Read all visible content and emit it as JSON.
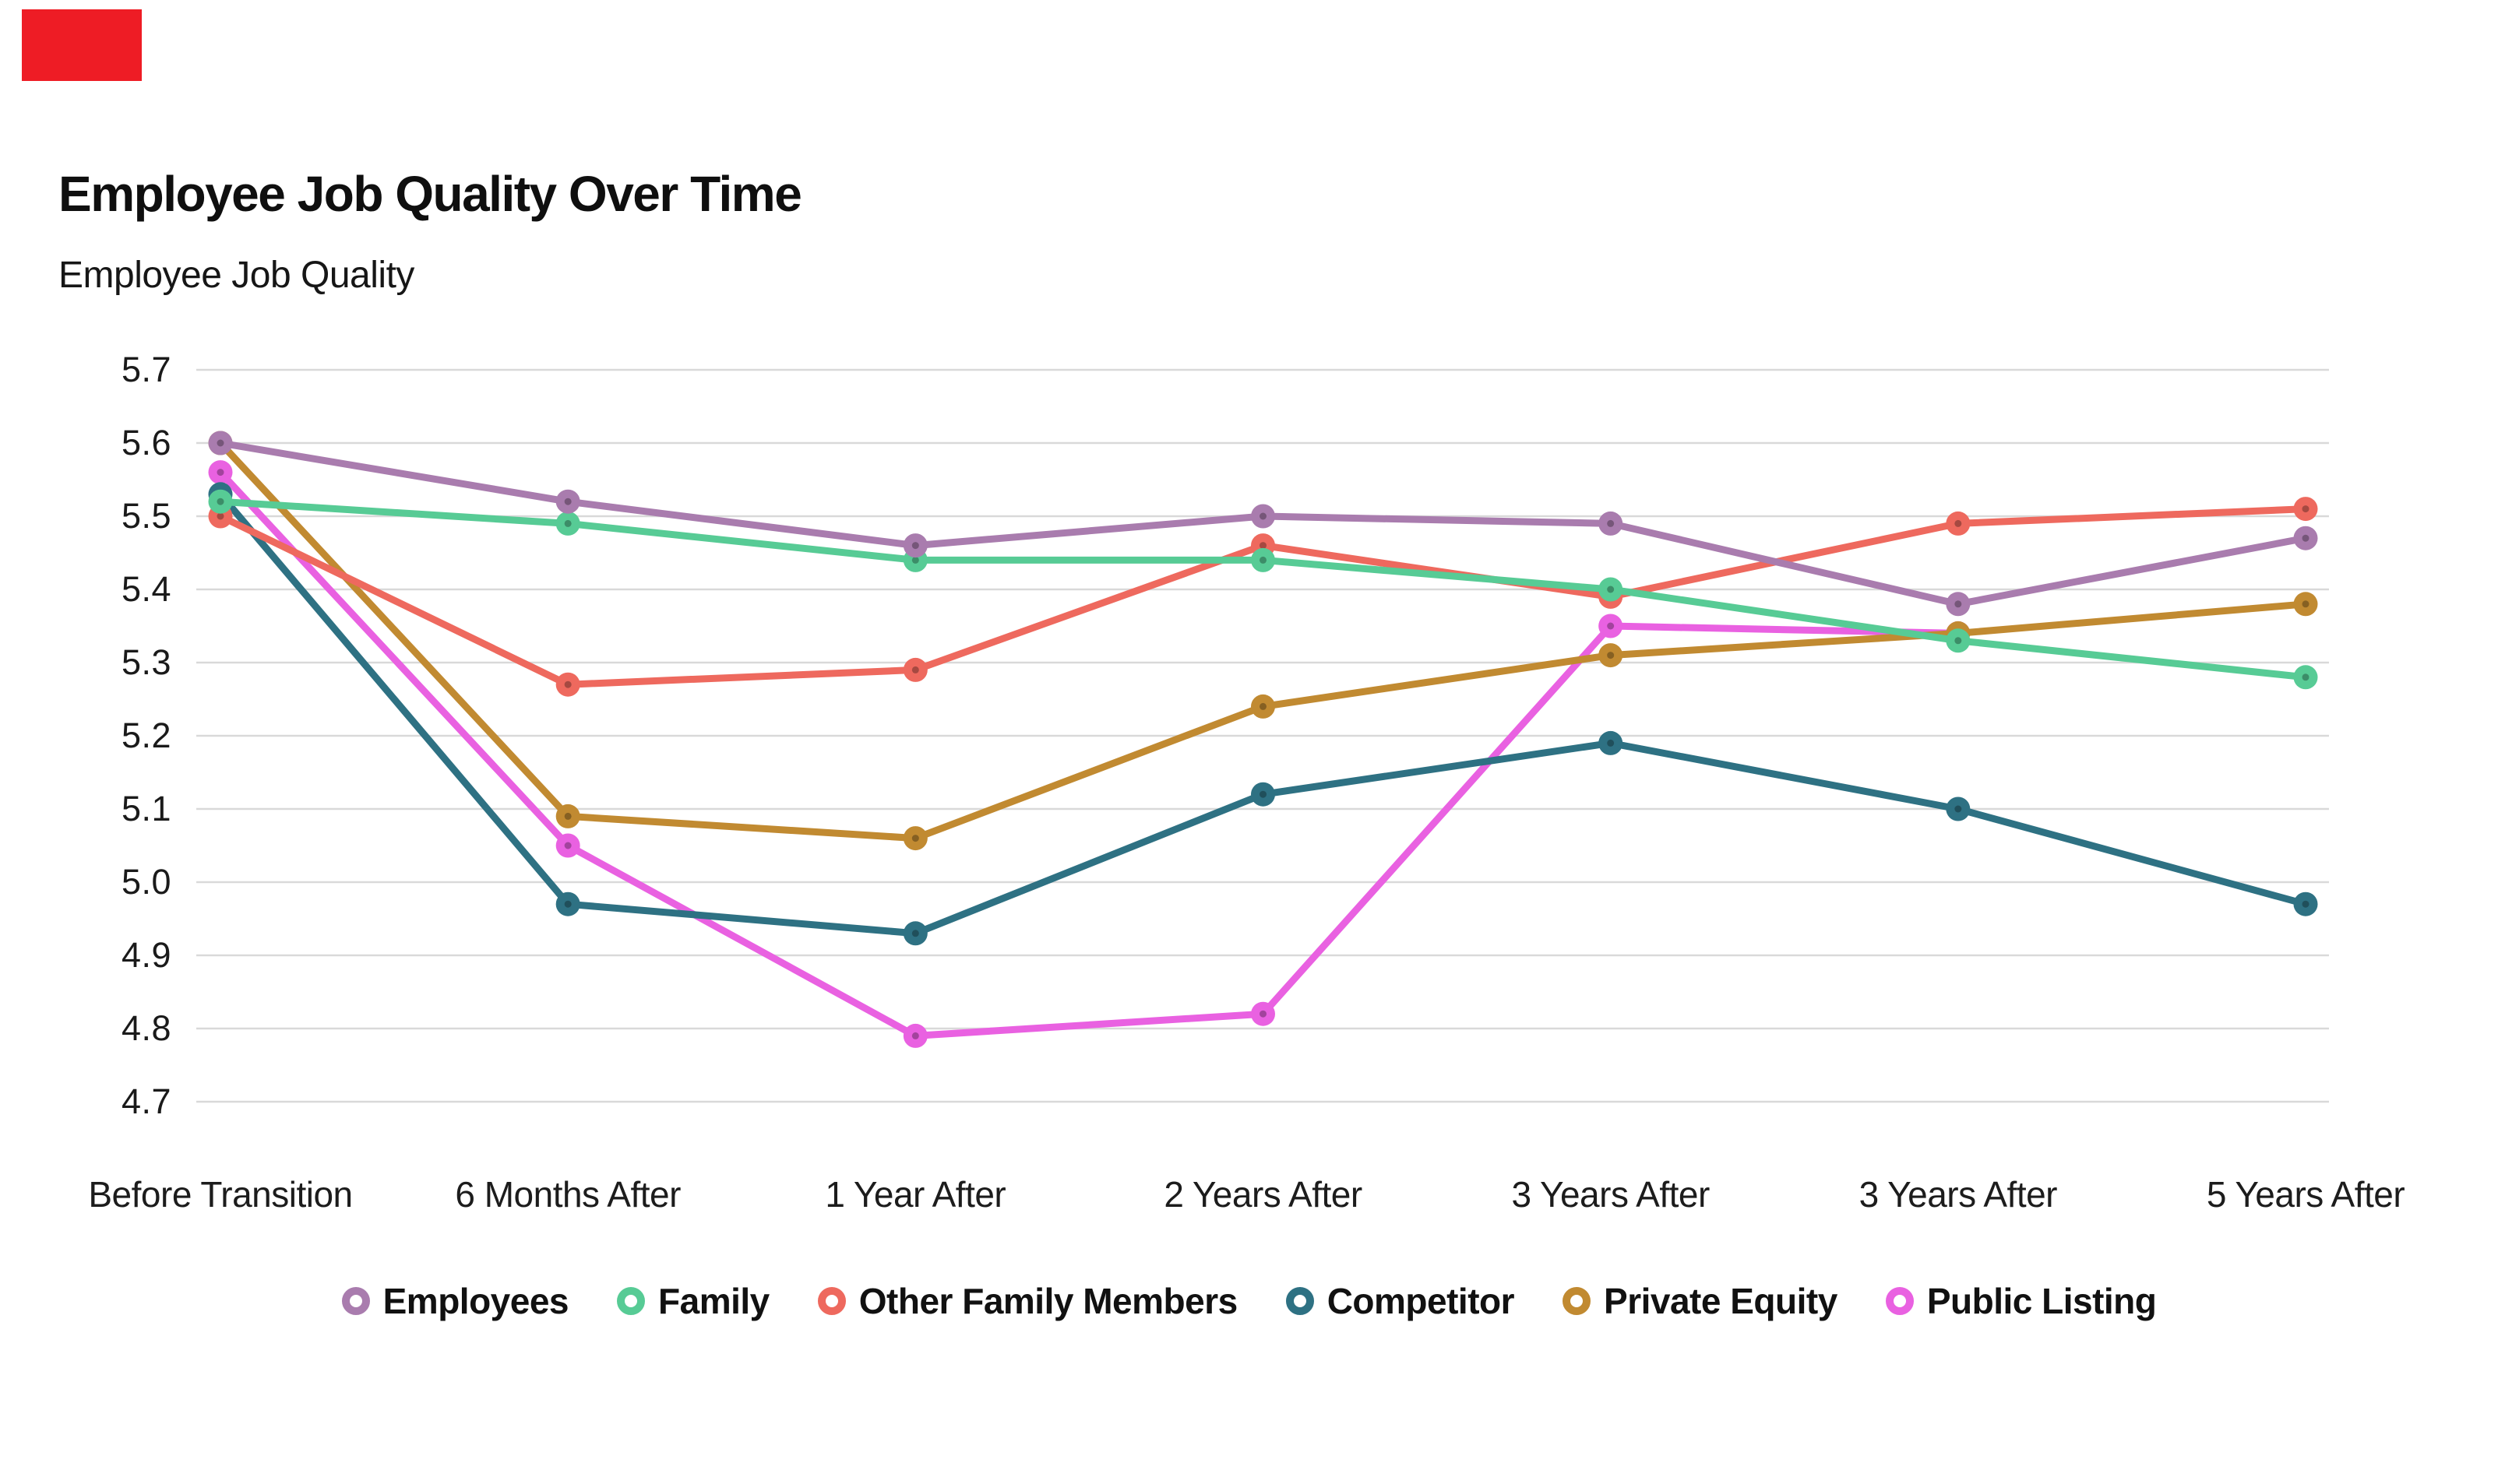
{
  "decorations": {
    "red_block_color": "#ee1c25"
  },
  "chart_data": {
    "type": "line",
    "title": "Employee Job Quality Over Time",
    "subtitle": "Employee Job Quality",
    "categories": [
      "Before Transition",
      "6 Months After",
      "1 Year After",
      "2 Years After",
      "3 Years After",
      "3 Years After",
      "5 Years After"
    ],
    "series": [
      {
        "name": "Employees",
        "color": "#a97cae",
        "values": [
          5.6,
          5.52,
          5.46,
          5.5,
          5.49,
          5.38,
          5.47
        ]
      },
      {
        "name": "Family",
        "color": "#57cb95",
        "values": [
          5.52,
          5.49,
          5.44,
          5.44,
          5.4,
          5.33,
          5.28
        ]
      },
      {
        "name": "Other Family Members",
        "color": "#ee695e",
        "values": [
          5.5,
          5.27,
          5.29,
          5.46,
          5.39,
          5.49,
          5.51
        ]
      },
      {
        "name": "Competitor",
        "color": "#2e7183",
        "values": [
          5.53,
          4.97,
          4.93,
          5.12,
          5.19,
          5.1,
          4.97
        ]
      },
      {
        "name": "Private Equity",
        "color": "#c18a31",
        "values": [
          5.6,
          5.09,
          5.06,
          5.24,
          5.31,
          5.34,
          5.38
        ]
      },
      {
        "name": "Public Listing",
        "color": "#e961e1",
        "values": [
          5.56,
          5.05,
          4.79,
          4.82,
          5.35,
          5.34,
          null
        ]
      }
    ],
    "ylim": [
      4.7,
      5.7
    ],
    "ytick_labels": [
      "5.7",
      "5.6",
      "5.5",
      "5.4",
      "5.3",
      "5.2",
      "5.1",
      "5.0",
      "4.9",
      "4.8",
      "4.7"
    ],
    "grid": "horizontal-only",
    "gridline_color": "#d9d9d9",
    "axis_text_color": "#1a1a1a",
    "legend_position": "bottom-center"
  }
}
